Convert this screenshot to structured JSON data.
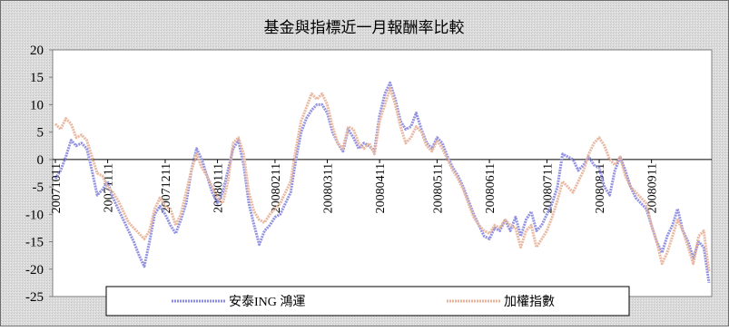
{
  "chart_data": {
    "type": "line",
    "title": "基金與指標近一月報酬率比較",
    "xlabel": "",
    "ylabel": "",
    "ylim": [
      -25,
      20
    ],
    "yticks": [
      20,
      15,
      10,
      5,
      0,
      -5,
      -10,
      -15,
      -20,
      -25
    ],
    "xticks": [
      "20071011",
      "20071111",
      "20071211",
      "20080111",
      "20080211",
      "20080311",
      "20080411",
      "20080511",
      "20080611",
      "20080711",
      "20080811",
      "20080911"
    ],
    "grid": false,
    "legend_position": "bottom",
    "series": [
      {
        "name": "安泰ING 鴻運",
        "color": "#8c8ce0",
        "values": [
          -3.5,
          -2.0,
          0.5,
          3.5,
          2.5,
          3.0,
          2.0,
          -2.0,
          -6.5,
          -5.5,
          -4.0,
          -7.0,
          -9.0,
          -11.0,
          -13.0,
          -15.0,
          -17.5,
          -19.5,
          -15.0,
          -10.0,
          -8.5,
          -10.0,
          -12.0,
          -13.5,
          -11.0,
          -8.0,
          -2.0,
          2.0,
          0.0,
          -3.0,
          -6.0,
          -8.0,
          -6.0,
          -2.0,
          2.0,
          3.5,
          -1.0,
          -8.0,
          -12.0,
          -15.5,
          -13.0,
          -12.0,
          -10.5,
          -10.0,
          -8.0,
          -6.0,
          0.0,
          5.0,
          7.5,
          9.0,
          10.0,
          10.0,
          8.5,
          5.0,
          3.0,
          1.5,
          5.5,
          4.0,
          2.0,
          3.0,
          2.5,
          1.5,
          8.0,
          12.0,
          14.0,
          11.0,
          7.0,
          5.5,
          6.0,
          8.5,
          5.5,
          3.0,
          2.0,
          4.0,
          3.0,
          0.5,
          -1.5,
          -3.0,
          -5.0,
          -7.5,
          -10.0,
          -12.0,
          -14.0,
          -14.5,
          -12.5,
          -13.0,
          -11.0,
          -13.0,
          -10.5,
          -14.0,
          -11.0,
          -9.5,
          -13.0,
          -12.0,
          -10.0,
          -8.0,
          -5.0,
          1.0,
          0.5,
          0.0,
          -2.0,
          -1.0,
          0.5,
          -1.0,
          -1.5,
          -5.0,
          -6.5,
          -2.0,
          0.5,
          -2.0,
          -5.0,
          -7.0,
          -8.0,
          -9.0,
          -12.0,
          -15.0,
          -17.0,
          -14.0,
          -12.0,
          -9.0,
          -13.0,
          -15.0,
          -18.0,
          -15.0,
          -16.0,
          -22.5
        ]
      },
      {
        "name": "加權指數",
        "color": "#e8b49c",
        "values": [
          6.5,
          5.5,
          7.5,
          6.5,
          4.0,
          4.5,
          3.5,
          0.5,
          -2.5,
          -3.0,
          -5.0,
          -6.0,
          -7.5,
          -9.5,
          -11.5,
          -12.5,
          -13.5,
          -14.5,
          -13.0,
          -9.0,
          -7.0,
          -8.5,
          -9.0,
          -12.0,
          -10.0,
          -6.0,
          -2.0,
          1.0,
          -1.5,
          -3.0,
          -5.0,
          -7.0,
          -8.0,
          -4.0,
          3.0,
          4.0,
          1.0,
          -6.0,
          -9.5,
          -11.0,
          -11.5,
          -10.0,
          -9.0,
          -8.0,
          -6.0,
          -4.0,
          2.0,
          7.0,
          9.5,
          12.0,
          11.0,
          12.0,
          10.0,
          6.0,
          3.0,
          2.0,
          6.0,
          5.5,
          3.0,
          2.0,
          3.0,
          1.0,
          7.0,
          10.0,
          13.0,
          10.0,
          6.0,
          3.0,
          4.0,
          6.0,
          5.0,
          2.5,
          1.5,
          3.5,
          2.0,
          0.0,
          -2.0,
          -3.5,
          -5.5,
          -8.0,
          -10.5,
          -12.0,
          -13.0,
          -13.5,
          -12.0,
          -12.5,
          -11.0,
          -12.0,
          -12.5,
          -16.0,
          -13.0,
          -12.0,
          -16.0,
          -14.5,
          -13.0,
          -10.5,
          -7.5,
          -4.0,
          -5.0,
          -6.0,
          -4.0,
          -2.0,
          1.0,
          3.0,
          4.0,
          2.5,
          0.0,
          -1.0,
          0.5,
          -3.0,
          -5.0,
          -6.0,
          -7.0,
          -8.0,
          -12.0,
          -15.0,
          -19.0,
          -17.0,
          -14.0,
          -11.0,
          -13.0,
          -16.0,
          -19.0,
          -14.0,
          -13.0,
          -20.5
        ]
      }
    ]
  }
}
